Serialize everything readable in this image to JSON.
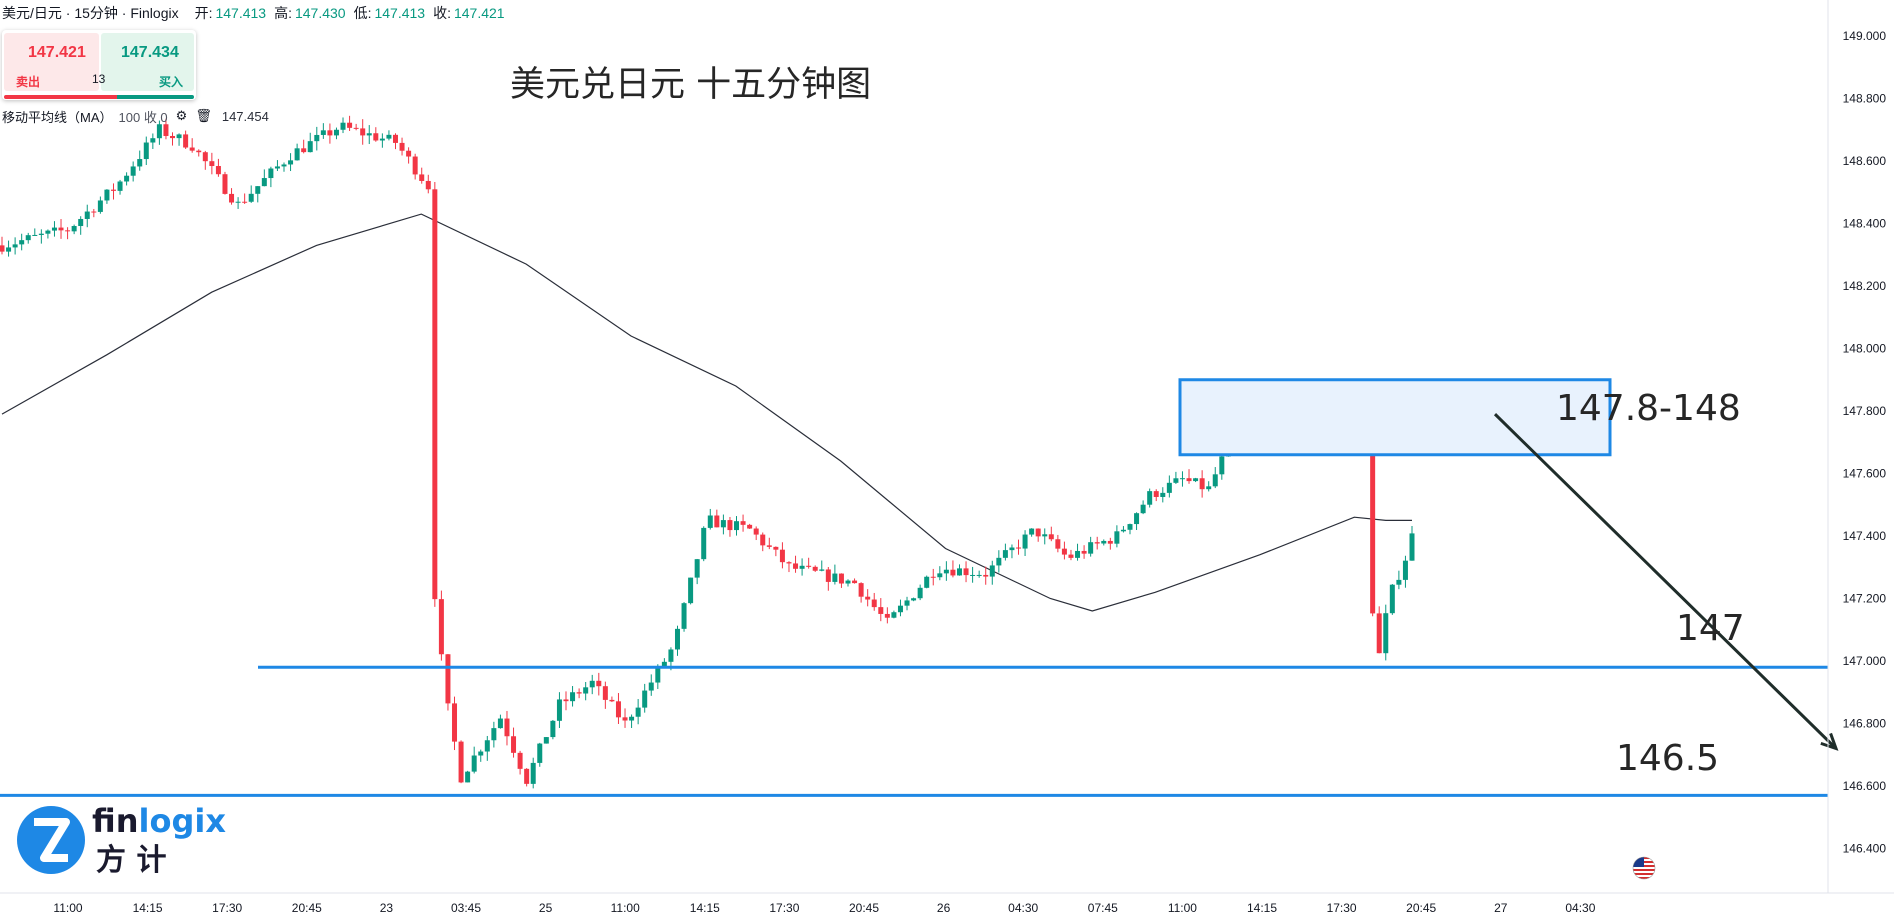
{
  "header": {
    "symbol": "美元/日元 · 15分钟 · Finlogix",
    "open_label": "开:",
    "open": "147.413",
    "high_label": "高:",
    "high": "147.430",
    "low_label": "低:",
    "low": "147.413",
    "close_label": "收:",
    "close": "147.421"
  },
  "trade_panel": {
    "sell_price": "147.421",
    "buy_price": "147.434",
    "sell_label": "卖出",
    "buy_label": "买入",
    "spread": "13"
  },
  "indicator": {
    "name": "移动平均线（MA）",
    "params": "100 收 0",
    "value": "147.454",
    "icons": [
      "gear-icon",
      "trash-icon"
    ]
  },
  "logo": {
    "word": "finlogix",
    "cn": "方计",
    "colors": {
      "blue": "#1e88e5",
      "dark": "#1a1a2e"
    }
  },
  "chart_data": {
    "type": "candlestick",
    "title": "美元兑日元 十五分钟图",
    "y_ticks": [
      "149.000",
      "148.800",
      "148.600",
      "148.400",
      "148.200",
      "148.000",
      "147.800",
      "147.600",
      "147.400",
      "147.200",
      "147.000",
      "146.800",
      "146.600",
      "146.400"
    ],
    "ylim": [
      146.3,
      149.03
    ],
    "x_ticks": [
      "11:00",
      "14:15",
      "17:30",
      "20:45",
      "23",
      "03:45",
      "25",
      "11:00",
      "14:15",
      "17:30",
      "20:45",
      "26",
      "04:30",
      "07:45",
      "11:00",
      "14:15",
      "17:30",
      "20:45",
      "27",
      "04:30"
    ],
    "up_color": "#089981",
    "down_color": "#f23645",
    "ma_color": "#2a2e39",
    "line_color": "#1e88e5",
    "arrow_color": "#1f2d2a",
    "zone_fill": "#e8f2fd",
    "ma_path": [
      [
        0,
        147.79
      ],
      [
        100,
        147.98
      ],
      [
        200,
        148.18
      ],
      [
        300,
        148.33
      ],
      [
        400,
        148.43
      ],
      [
        500,
        148.27
      ],
      [
        600,
        148.04
      ],
      [
        700,
        147.88
      ],
      [
        800,
        147.64
      ],
      [
        900,
        147.36
      ],
      [
        1000,
        147.2
      ],
      [
        1040,
        147.16
      ],
      [
        1100,
        147.22
      ],
      [
        1200,
        147.34
      ],
      [
        1290,
        147.46
      ],
      [
        1320,
        147.45
      ],
      [
        1345,
        147.45
      ]
    ],
    "annotations": [
      {
        "label": "147.8-148",
        "type": "zone",
        "y_from": 147.66,
        "y_to": 147.9
      },
      {
        "label": "147",
        "type": "hline",
        "y": 146.98
      },
      {
        "label": "146.5",
        "type": "hline",
        "y": 146.57
      }
    ],
    "arrow": {
      "from_y": 147.79,
      "to_y": 146.72
    }
  }
}
